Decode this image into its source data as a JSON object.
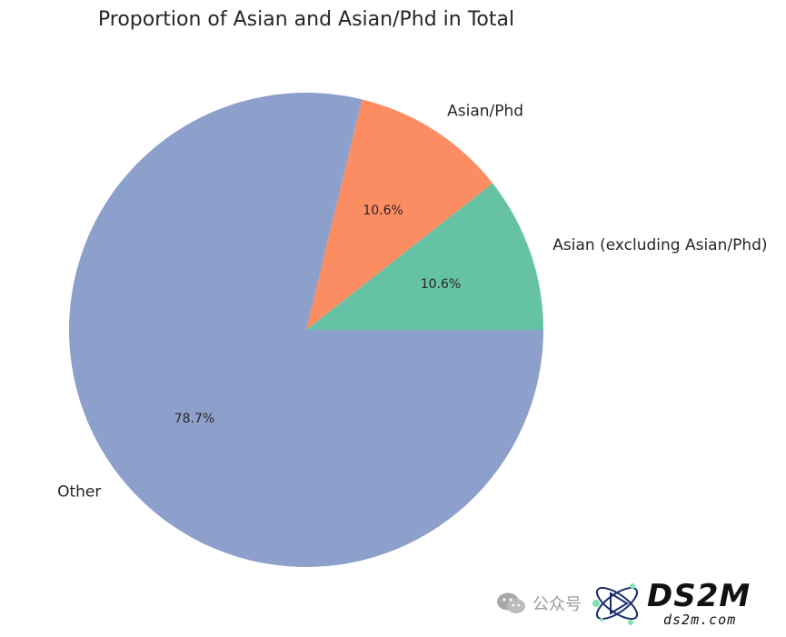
{
  "chart_data": {
    "type": "pie",
    "title": "Proportion of Asian and Asian/Phd in Total",
    "slices": [
      {
        "label": "Asian (excluding Asian/Phd)",
        "value": 10.6,
        "pct_label": "10.6%",
        "color": "#66c2a5"
      },
      {
        "label": "Asian/Phd",
        "value": 10.6,
        "pct_label": "10.6%",
        "color": "#fc8d62"
      },
      {
        "label": "Other",
        "value": 78.7,
        "pct_label": "78.7%",
        "color": "#8da0cb"
      }
    ],
    "start_angle_deg": 0,
    "direction": "counterclockwise",
    "legend": "none"
  },
  "watermark": {
    "wechat_text": "公众号",
    "brand": "DS2M",
    "site": "ds2m.com"
  }
}
